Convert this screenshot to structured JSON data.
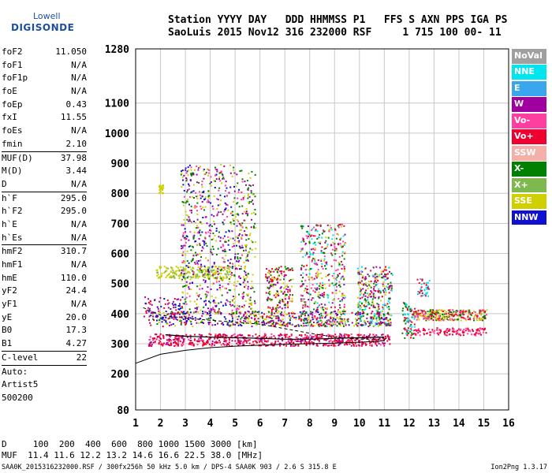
{
  "logo": {
    "brand": "Lowell",
    "product": "DIGISONDE"
  },
  "header": {
    "line1": "Station YYYY DAY   DDD HHMMSS P1   FFS S AXN PPS IGA PS",
    "line2": "SaoLuis 2015 Nov12 316 232000 RSF     1 715 100 00- 11"
  },
  "params": [
    {
      "key": "foF2",
      "value": "11.050"
    },
    {
      "key": "foF1",
      "value": "N/A"
    },
    {
      "key": "foF1p",
      "value": "N/A"
    },
    {
      "key": "foE",
      "value": "N/A"
    },
    {
      "key": "foEp",
      "value": "0.43"
    },
    {
      "key": "fxI",
      "value": "11.55"
    },
    {
      "key": "foEs",
      "value": "N/A"
    },
    {
      "key": "fmin",
      "value": "2.10"
    },
    {
      "sep": true
    },
    {
      "key": "MUF(D)",
      "value": "37.98"
    },
    {
      "key": "M(D)",
      "value": "3.44"
    },
    {
      "key": "D",
      "value": "N/A"
    },
    {
      "sep": true
    },
    {
      "key": "h`F",
      "value": "295.0"
    },
    {
      "key": "h`F2",
      "value": "295.0"
    },
    {
      "key": "h`E",
      "value": "N/A"
    },
    {
      "key": "h`Es",
      "value": "N/A"
    },
    {
      "sep": true
    },
    {
      "key": "hmF2",
      "value": "310.7"
    },
    {
      "key": "hmF1",
      "value": "N/A"
    },
    {
      "key": "hmE",
      "value": "110.0"
    },
    {
      "key": "yF2",
      "value": "24.4"
    },
    {
      "key": "yF1",
      "value": "N/A"
    },
    {
      "key": "yE",
      "value": "20.0"
    },
    {
      "key": "B0",
      "value": "17.3"
    },
    {
      "key": "B1",
      "value": "4.27"
    },
    {
      "sep": true
    },
    {
      "key": "C-level",
      "value": "22"
    },
    {
      "sep": true
    },
    {
      "key": "Auto:",
      "value": ""
    },
    {
      "key": "Artist5",
      "value": ""
    },
    {
      "key": "500200",
      "value": ""
    }
  ],
  "legend": [
    {
      "label": "NoVal",
      "color": "#a0a0a0"
    },
    {
      "label": "NNE",
      "color": "#00e5ee"
    },
    {
      "label": "E",
      "color": "#3aa6ee"
    },
    {
      "label": "W",
      "color": "#a000a0"
    },
    {
      "label": "Vo-",
      "color": "#ff3fa0"
    },
    {
      "label": "Vo+",
      "color": "#ee0030"
    },
    {
      "label": "SSW",
      "color": "#f4b0a8"
    },
    {
      "label": "X-",
      "color": "#008000"
    },
    {
      "label": "X+",
      "color": "#80b850"
    },
    {
      "label": "SSE",
      "color": "#d0d000"
    },
    {
      "label": "NNW",
      "color": "#1010d0"
    }
  ],
  "chart_data": {
    "type": "scatter",
    "x_ticks": [
      "1",
      "2",
      "3",
      "4",
      "5",
      "6",
      "7",
      "8",
      "9",
      "10",
      "11",
      "12",
      "13",
      "14",
      "15",
      "16"
    ],
    "y_ticks": [
      "80",
      "200",
      "300",
      "400",
      "500",
      "600",
      "700",
      "800",
      "900",
      "1000",
      "1100",
      "1280"
    ],
    "xlim": [
      1,
      16
    ],
    "ylim": [
      80,
      1280
    ],
    "colors": {
      "NNE": "#00e5ee",
      "E": "#3aa6ee",
      "W": "#a000a0",
      "Vo-": "#ff3fa0",
      "Vo+": "#ee0030",
      "X-": "#008000",
      "X+": "#80b850",
      "SSE": "#d0d000",
      "NNW": "#1010d0",
      "NoVal": "#a0a0a0"
    },
    "clusters": [
      {
        "x": [
          1.5,
          11.2
        ],
        "y": [
          295,
          335
        ],
        "colors": [
          "Vo+",
          "Vo-",
          "W",
          "Vo+",
          "Vo+"
        ],
        "n": 700
      },
      {
        "x": [
          1.5,
          11.2
        ],
        "y": [
          360,
          410
        ],
        "colors": [
          "SSE",
          "Vo+",
          "X-",
          "W",
          "NNW"
        ],
        "n": 500
      },
      {
        "x": [
          1.8,
          4.8
        ],
        "y": [
          520,
          560
        ],
        "colors": [
          "SSE",
          "SSE",
          "X+"
        ],
        "n": 220
      },
      {
        "x": [
          2.8,
          5.3
        ],
        "y": [
          400,
          900
        ],
        "colors": [
          "SSE",
          "W",
          "NNW",
          "X-",
          "Vo-"
        ],
        "n": 700
      },
      {
        "x": [
          1.9,
          2.1
        ],
        "y": [
          800,
          830
        ],
        "colors": [
          "SSE"
        ],
        "n": 30
      },
      {
        "x": [
          5.3,
          5.8
        ],
        "y": [
          360,
          880
        ],
        "colors": [
          "SSE",
          "W",
          "X-"
        ],
        "n": 150
      },
      {
        "x": [
          6.2,
          7.3
        ],
        "y": [
          360,
          560
        ],
        "colors": [
          "X-",
          "SSE",
          "Vo+",
          "W"
        ],
        "n": 220
      },
      {
        "x": [
          7.6,
          9.4
        ],
        "y": [
          360,
          700
        ],
        "colors": [
          "W",
          "X-",
          "SSE",
          "Vo+",
          "Vo-",
          "NNE"
        ],
        "n": 450
      },
      {
        "x": [
          9.9,
          11.3
        ],
        "y": [
          360,
          560
        ],
        "colors": [
          "SSE",
          "X-",
          "Vo+",
          "W",
          "NNE"
        ],
        "n": 300
      },
      {
        "x": [
          11.7,
          12.2
        ],
        "y": [
          320,
          440
        ],
        "colors": [
          "Vo+",
          "X-",
          "NNE"
        ],
        "n": 80
      },
      {
        "x": [
          12.2,
          15.1
        ],
        "y": [
          380,
          415
        ],
        "colors": [
          "Vo+",
          "Vo-",
          "X-",
          "SSE"
        ],
        "n": 300
      },
      {
        "x": [
          12.2,
          15.1
        ],
        "y": [
          330,
          355
        ],
        "colors": [
          "Vo+",
          "Vo-"
        ],
        "n": 120
      },
      {
        "x": [
          12.3,
          12.8
        ],
        "y": [
          460,
          520
        ],
        "colors": [
          "NNE",
          "E",
          "Vo+"
        ],
        "n": 40
      },
      {
        "x": [
          1.3,
          3.0
        ],
        "y": [
          380,
          460
        ],
        "colors": [
          "NNW",
          "W",
          "Vo+"
        ],
        "n": 80
      }
    ],
    "profile_curve": {
      "x": [
        1,
        2,
        3,
        4,
        5,
        6,
        7,
        8,
        9,
        10,
        10.5,
        11.0,
        11.05
      ],
      "y": [
        235,
        265,
        278,
        287,
        292,
        295,
        298,
        300,
        302,
        305,
        307,
        310,
        318
      ]
    },
    "dashed_curve": {
      "x": [
        1.3,
        2,
        3,
        4,
        5,
        6,
        7,
        8,
        9,
        10,
        10.8,
        11.0
      ],
      "y": [
        420,
        395,
        385,
        378,
        372,
        365,
        350,
        335,
        322,
        315,
        315,
        322
      ]
    },
    "solid_trace": {
      "x": [
        2.2,
        3,
        4,
        5,
        6,
        7,
        8,
        9,
        10,
        11
      ],
      "y": [
        330,
        325,
        322,
        320,
        318,
        315,
        315,
        318,
        320,
        322
      ]
    }
  },
  "bottom": {
    "d_row": "D     100  200  400  600  800 1000 1500 3000 [km]",
    "muf_row": "MUF  11.4 11.6 12.2 13.2 14.6 16.6 22.5 38.0 [MHz]"
  },
  "footer": "SAA0K_2015316232000.RSF / 300fx256h 50 kHz 5.0 km / DPS-4 SAA0K 903 / 2.6 S 315.8 E",
  "version": "Ion2Png 1.3.17"
}
